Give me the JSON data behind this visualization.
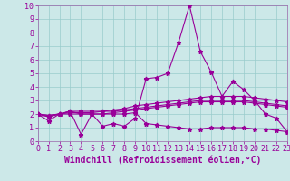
{
  "xlabel": "Windchill (Refroidissement éolien,°C)",
  "bg_color": "#cce8e8",
  "grid_color": "#99cccc",
  "line_color": "#990099",
  "axis_label_color": "#660066",
  "spine_color": "#9966aa",
  "xlim": [
    0,
    23
  ],
  "ylim": [
    0,
    10
  ],
  "xticks": [
    0,
    1,
    2,
    3,
    4,
    5,
    6,
    7,
    8,
    9,
    10,
    11,
    12,
    13,
    14,
    15,
    16,
    17,
    18,
    19,
    20,
    21,
    22,
    23
  ],
  "yticks": [
    0,
    1,
    2,
    3,
    4,
    5,
    6,
    7,
    8,
    9,
    10
  ],
  "series": [
    [
      2.0,
      1.5,
      2.0,
      2.2,
      0.5,
      2.0,
      1.1,
      1.3,
      1.1,
      1.7,
      4.6,
      4.7,
      5.0,
      7.3,
      10.0,
      6.6,
      5.1,
      3.3,
      4.4,
      3.8,
      3.0,
      2.0,
      1.7,
      0.7
    ],
    [
      2.0,
      1.8,
      2.0,
      2.2,
      2.2,
      2.2,
      2.2,
      2.3,
      2.4,
      2.6,
      2.7,
      2.8,
      2.9,
      3.0,
      3.1,
      3.2,
      3.3,
      3.3,
      3.3,
      3.3,
      3.2,
      3.1,
      3.0,
      2.9
    ],
    [
      2.0,
      1.9,
      2.0,
      2.1,
      2.1,
      2.1,
      2.2,
      2.2,
      2.3,
      2.4,
      2.5,
      2.6,
      2.7,
      2.8,
      2.9,
      3.0,
      3.0,
      3.0,
      3.0,
      3.0,
      2.9,
      2.8,
      2.7,
      2.6
    ],
    [
      2.0,
      1.9,
      2.0,
      2.0,
      2.0,
      2.0,
      2.0,
      2.1,
      2.2,
      2.3,
      2.4,
      2.5,
      2.6,
      2.7,
      2.8,
      2.9,
      2.9,
      2.9,
      2.9,
      2.9,
      2.8,
      2.7,
      2.6,
      2.5
    ],
    [
      2.0,
      1.8,
      2.0,
      2.2,
      2.0,
      2.0,
      2.0,
      2.0,
      2.0,
      2.1,
      1.3,
      1.2,
      1.1,
      1.0,
      0.9,
      0.9,
      1.0,
      1.0,
      1.0,
      1.0,
      0.9,
      0.9,
      0.8,
      0.7
    ]
  ],
  "tick_fontsize": 6,
  "xlabel_fontsize": 7
}
